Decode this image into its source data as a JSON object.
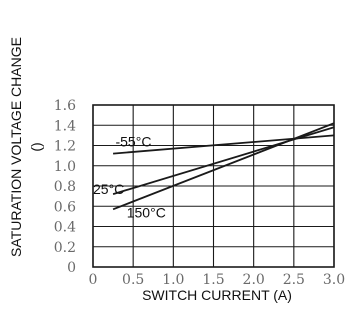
{
  "chart_data": {
    "type": "line",
    "title": "",
    "xlabel": "SWITCH CURRENT (A)",
    "ylabel": "SATURATION VOLTAGE CHANGE",
    "ylabel_sub": "()",
    "xlim": [
      0,
      3.0
    ],
    "ylim": [
      0,
      1.6
    ],
    "x_ticks": [
      "0",
      "0.5",
      "1.0",
      "1.5",
      "2.0",
      "2.5",
      "3.0"
    ],
    "y_ticks": [
      "0",
      "0.2",
      "0.4",
      "0.6",
      "0.8",
      "1.0",
      "1.2",
      "1.4",
      "1.6"
    ],
    "grid": true,
    "series": [
      {
        "name": "-55°C",
        "x": [
          0.25,
          3.0
        ],
        "y": [
          1.12,
          1.3
        ]
      },
      {
        "name": "25°C",
        "x": [
          0.25,
          3.0
        ],
        "y": [
          0.72,
          1.38
        ]
      },
      {
        "name": "150°C",
        "x": [
          0.25,
          3.0
        ],
        "y": [
          0.57,
          1.42
        ]
      }
    ]
  }
}
